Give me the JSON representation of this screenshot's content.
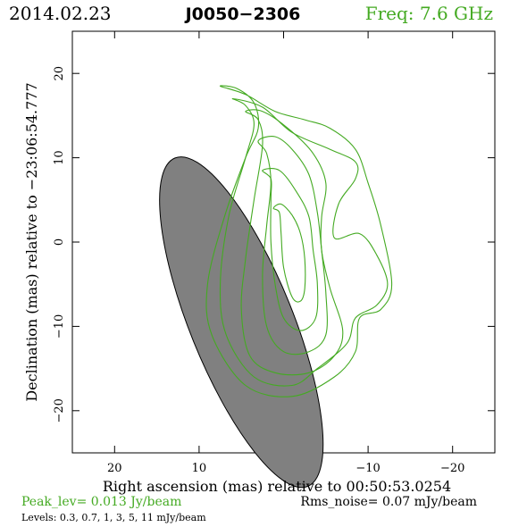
{
  "header": {
    "date": "2014.02.23",
    "source": "J0050−2306",
    "freq": "Freq: 7.6 GHz"
  },
  "colors": {
    "contour": "#44aa22",
    "beam_fill": "#808080",
    "axis": "#000000",
    "freq_text": "#44aa22",
    "peak_text": "#44aa22"
  },
  "footer": {
    "peak": "Peak_lev=  0.013 Jy/beam",
    "rms": "Rms_noise= 0.07 mJy/beam",
    "levels": "Levels: 0.3, 0.7,    1,    3,    5,   11 mJy/beam"
  },
  "chart_data": {
    "type": "contour",
    "xlabel": "Right ascension (mas) relative to 00:50:53.0254",
    "ylabel": "Declination (mas) relative to −23:06:54.777",
    "xlim": [
      25,
      -25
    ],
    "ylim": [
      -25,
      25
    ],
    "x_ticks": [
      20,
      10,
      0,
      -10,
      -20
    ],
    "y_ticks": [
      20,
      10,
      0,
      -10,
      -20
    ],
    "x_tick_labels": [
      "20",
      "10",
      "0",
      "−10",
      "−20"
    ],
    "y_tick_labels": [
      "20",
      "10",
      "0",
      "−10",
      "−20"
    ],
    "beam": {
      "center": [
        5.0,
        -9.5
      ],
      "major_axis": 42.0,
      "minor_axis": 12.2,
      "pa_deg": -22
    },
    "levels_mJy": [
      0.3,
      0.7,
      1,
      3,
      5,
      11
    ],
    "contours": [
      {
        "level": 0.3,
        "points": [
          [
            7.5,
            18.5
          ],
          [
            5.5,
            18.2
          ],
          [
            3.5,
            16.5
          ],
          [
            3.0,
            13.5
          ],
          [
            4.5,
            10.0
          ],
          [
            7.0,
            3.0
          ],
          [
            9.0,
            -5.0
          ],
          [
            8.5,
            -11.0
          ],
          [
            4.5,
            -17.0
          ],
          [
            -1.0,
            -18.3
          ],
          [
            -6.0,
            -16.0
          ],
          [
            -8.5,
            -13.0
          ],
          [
            -9.0,
            -9.0
          ],
          [
            -11.5,
            -8.0
          ],
          [
            -12.8,
            -5.0
          ],
          [
            -11.5,
            2.0
          ],
          [
            -10.0,
            7.0
          ],
          [
            -8.5,
            11.0
          ],
          [
            -5.5,
            13.5
          ],
          [
            -2.5,
            14.5
          ],
          [
            1.0,
            15.5
          ],
          [
            4.5,
            17.5
          ],
          [
            7.5,
            18.5
          ]
        ]
      },
      {
        "level": 0.7,
        "points": [
          [
            6.0,
            17.0
          ],
          [
            4.5,
            16.2
          ],
          [
            3.5,
            14.0
          ],
          [
            4.5,
            10.0
          ],
          [
            6.5,
            3.0
          ],
          [
            7.5,
            -5.0
          ],
          [
            6.8,
            -11.0
          ],
          [
            3.5,
            -16.0
          ],
          [
            -1.0,
            -17.0
          ],
          [
            -4.0,
            -15.0
          ],
          [
            -7.5,
            -12.0
          ],
          [
            -8.5,
            -9.0
          ],
          [
            -11.0,
            -7.5
          ],
          [
            -12.3,
            -5.0
          ],
          [
            -11.0,
            -1.5
          ],
          [
            -9.0,
            1.0
          ],
          [
            -6.0,
            0.5
          ],
          [
            -6.5,
            4.5
          ],
          [
            -8.5,
            7.5
          ],
          [
            -8.5,
            9.5
          ],
          [
            -5.5,
            11.0
          ],
          [
            -1.0,
            13.0
          ],
          [
            2.5,
            16.0
          ],
          [
            6.0,
            17.0
          ]
        ]
      },
      {
        "level": 1,
        "points": [
          [
            4.5,
            15.5
          ],
          [
            3.0,
            14.5
          ],
          [
            2.5,
            11.5
          ],
          [
            3.5,
            5.0
          ],
          [
            4.5,
            -2.0
          ],
          [
            5.0,
            -8.0
          ],
          [
            4.0,
            -13.5
          ],
          [
            1.0,
            -15.5
          ],
          [
            -3.0,
            -15.5
          ],
          [
            -6.0,
            -13.5
          ],
          [
            -7.0,
            -10.5
          ],
          [
            -5.5,
            -5.5
          ],
          [
            -4.5,
            -1.0
          ],
          [
            -4.5,
            3.0
          ],
          [
            -5.0,
            7.0
          ],
          [
            -3.5,
            10.5
          ],
          [
            -0.5,
            13.5
          ],
          [
            2.5,
            15.5
          ],
          [
            4.5,
            15.5
          ]
        ]
      },
      {
        "level": 3,
        "points": [
          [
            3.0,
            12.0
          ],
          [
            2.0,
            10.5
          ],
          [
            1.5,
            7.0
          ],
          [
            2.0,
            2.0
          ],
          [
            2.5,
            -4.0
          ],
          [
            2.0,
            -10.0
          ],
          [
            0.0,
            -13.0
          ],
          [
            -3.0,
            -13.0
          ],
          [
            -5.0,
            -11.0
          ],
          [
            -5.0,
            -6.0
          ],
          [
            -4.5,
            -1.0
          ],
          [
            -4.0,
            3.5
          ],
          [
            -3.0,
            8.0
          ],
          [
            -1.0,
            11.0
          ],
          [
            1.0,
            12.5
          ],
          [
            3.0,
            12.0
          ]
        ]
      },
      {
        "level": 5,
        "points": [
          [
            2.5,
            8.5
          ],
          [
            1.5,
            7.5
          ],
          [
            1.5,
            5.0
          ],
          [
            1.5,
            0.0
          ],
          [
            1.0,
            -5.0
          ],
          [
            0.0,
            -9.0
          ],
          [
            -2.0,
            -10.5
          ],
          [
            -3.8,
            -9.0
          ],
          [
            -4.0,
            -5.0
          ],
          [
            -3.5,
            -1.0
          ],
          [
            -3.0,
            3.0
          ],
          [
            -1.5,
            6.0
          ],
          [
            0.5,
            8.5
          ],
          [
            2.5,
            8.5
          ]
        ]
      },
      {
        "level": 11,
        "points": [
          [
            1.2,
            4.0
          ],
          [
            0.5,
            3.5
          ],
          [
            0.3,
            1.0
          ],
          [
            0.0,
            -3.0
          ],
          [
            -1.0,
            -6.5
          ],
          [
            -2.0,
            -7.0
          ],
          [
            -2.5,
            -5.5
          ],
          [
            -2.5,
            -2.0
          ],
          [
            -2.0,
            1.0
          ],
          [
            -1.0,
            3.2
          ],
          [
            0.3,
            4.5
          ],
          [
            1.2,
            4.0
          ]
        ]
      }
    ]
  }
}
